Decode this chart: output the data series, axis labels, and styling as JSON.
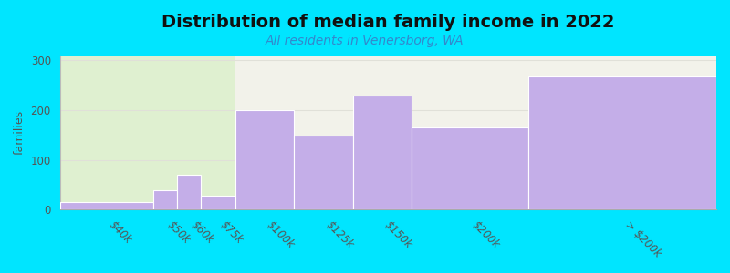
{
  "title": "Distribution of median family income in 2022",
  "subtitle": "All residents in Venersborg, WA",
  "ylabel": "families",
  "bar_color": "#c4aee8",
  "title_fontsize": 14,
  "subtitle_fontsize": 10,
  "subtitle_color": "#3388cc",
  "ylabel_fontsize": 9,
  "tick_fontsize": 8.5,
  "ylim": [
    0,
    310
  ],
  "yticks": [
    0,
    100,
    200,
    300
  ],
  "background_outer": "#00e5ff",
  "background_inner_left": "#dff0d0",
  "background_inner_right": "#f2f2ea",
  "grid_color": "#e0e0d8",
  "bar_left_edges": [
    0,
    40,
    50,
    60,
    75,
    100,
    125,
    150,
    200
  ],
  "bar_right_edges": [
    40,
    50,
    60,
    75,
    100,
    125,
    150,
    200,
    280
  ],
  "bar_heights": [
    15,
    40,
    70,
    28,
    200,
    148,
    228,
    165,
    268
  ],
  "tick_positions": [
    20,
    45,
    55,
    67.5,
    87.5,
    112.5,
    137.5,
    175,
    240
  ],
  "tick_labels": [
    "$40k",
    "$50k",
    "$60k",
    "$75k",
    "$100k",
    "$125k",
    "$150k",
    "$200k",
    "> $200k"
  ],
  "bg_split": 75,
  "x_min": 0,
  "x_max": 280
}
